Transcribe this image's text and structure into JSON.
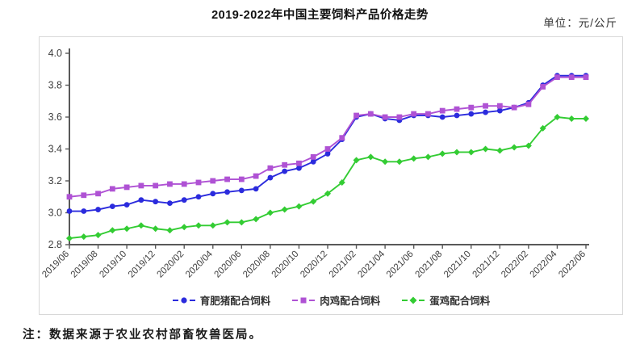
{
  "header": {
    "title": "2019-2022年中国主要饲料产品价格走势",
    "unit_label": "单位：元/公斤"
  },
  "footnote": "注：数据来源于农业农村部畜牧兽医局。",
  "chart_data": {
    "type": "line",
    "title": "2019-2022年中国主要饲料产品价格走势",
    "ylabel": "",
    "xlabel": "",
    "ylim": [
      2.8,
      4.0
    ],
    "ytick_step": 0.2,
    "ytick_labels": [
      "2.8",
      "3.0",
      "3.2",
      "3.4",
      "3.6",
      "3.8",
      "4.0"
    ],
    "xtick_every": 2,
    "grid": false,
    "legend_position": "bottom-center",
    "axis_color": "#595959",
    "tick_label_color": "#404040",
    "x": [
      "2019/06",
      "2019/07",
      "2019/08",
      "2019/09",
      "2019/10",
      "2019/11",
      "2019/12",
      "2020/01",
      "2020/02",
      "2020/03",
      "2020/04",
      "2020/05",
      "2020/06",
      "2020/07",
      "2020/08",
      "2020/09",
      "2020/10",
      "2020/11",
      "2020/12",
      "2021/01",
      "2021/02",
      "2021/03",
      "2021/04",
      "2021/05",
      "2021/06",
      "2021/07",
      "2021/08",
      "2021/09",
      "2021/10",
      "2021/11",
      "2021/12",
      "2022/01",
      "2022/02",
      "2022/03",
      "2022/04",
      "2022/05",
      "2022/06"
    ],
    "series": [
      {
        "name": "育肥猪配合饲料",
        "color": "#2b2bdd",
        "marker": "circle",
        "values": [
          3.01,
          3.01,
          3.02,
          3.04,
          3.05,
          3.08,
          3.07,
          3.06,
          3.08,
          3.1,
          3.12,
          3.13,
          3.14,
          3.15,
          3.22,
          3.26,
          3.28,
          3.32,
          3.37,
          3.46,
          3.6,
          3.62,
          3.59,
          3.58,
          3.61,
          3.61,
          3.6,
          3.61,
          3.62,
          3.63,
          3.64,
          3.66,
          3.69,
          3.8,
          3.86,
          3.86,
          3.86
        ]
      },
      {
        "name": "肉鸡配合饲料",
        "color": "#af52d4",
        "marker": "square",
        "values": [
          3.1,
          3.11,
          3.12,
          3.15,
          3.16,
          3.17,
          3.17,
          3.18,
          3.18,
          3.19,
          3.2,
          3.21,
          3.21,
          3.23,
          3.28,
          3.3,
          3.31,
          3.35,
          3.4,
          3.47,
          3.61,
          3.62,
          3.6,
          3.6,
          3.62,
          3.62,
          3.64,
          3.65,
          3.66,
          3.67,
          3.67,
          3.66,
          3.68,
          3.79,
          3.85,
          3.85,
          3.85
        ]
      },
      {
        "name": "蛋鸡配合饲料",
        "color": "#33cc33",
        "marker": "diamond",
        "values": [
          2.84,
          2.85,
          2.86,
          2.89,
          2.9,
          2.92,
          2.9,
          2.89,
          2.91,
          2.92,
          2.92,
          2.94,
          2.94,
          2.96,
          3.0,
          3.02,
          3.04,
          3.07,
          3.12,
          3.19,
          3.33,
          3.35,
          3.32,
          3.32,
          3.34,
          3.35,
          3.37,
          3.38,
          3.38,
          3.4,
          3.39,
          3.41,
          3.42,
          3.53,
          3.6,
          3.59,
          3.59
        ]
      }
    ]
  }
}
